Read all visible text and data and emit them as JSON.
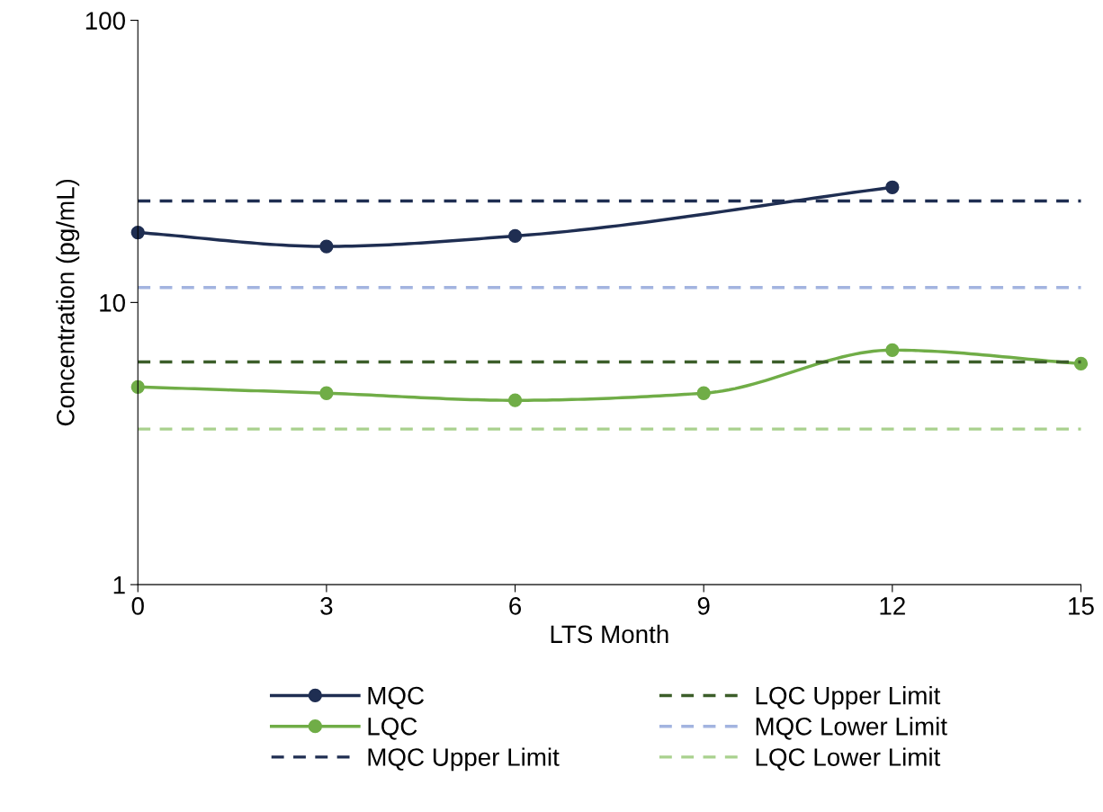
{
  "chart_data": {
    "type": "line",
    "xlabel": "LTS Month",
    "ylabel": "Concentration (pg/mL)",
    "x": [
      0,
      3,
      6,
      9,
      12,
      15
    ],
    "xlim": [
      0,
      15
    ],
    "xticks": [
      0,
      3,
      6,
      9,
      12,
      15
    ],
    "ylim": [
      1,
      100
    ],
    "yticks": [
      1,
      10,
      100
    ],
    "log": "y",
    "grid": false,
    "legend": "bottom",
    "series": [
      {
        "name": "MQC",
        "color": "#1f2e52",
        "marker": "circle",
        "line_style": "solid",
        "x": [
          0,
          3,
          6,
          12
        ],
        "values": [
          17.7,
          15.8,
          17.2,
          25.6
        ]
      },
      {
        "name": "LQC",
        "color": "#70ad47",
        "marker": "circle",
        "line_style": "solid",
        "values": [
          5.02,
          4.77,
          4.5,
          4.77,
          6.78,
          6.07
        ]
      },
      {
        "name": "MQC Upper Limit",
        "color": "#1f2e52",
        "marker": "none",
        "line_style": "dashed",
        "x": [
          0,
          15
        ],
        "values": [
          22.9,
          22.9
        ]
      },
      {
        "name": "LQC Upper Limit",
        "color": "#3c5e2a",
        "marker": "none",
        "line_style": "dashed",
        "x": [
          0,
          15
        ],
        "values": [
          6.16,
          6.16
        ]
      },
      {
        "name": "MQC Lower Limit",
        "color": "#a3b4e0",
        "marker": "none",
        "line_style": "dashed",
        "x": [
          0,
          15
        ],
        "values": [
          11.3,
          11.3
        ]
      },
      {
        "name": "LQC Lower Limit",
        "color": "#a9d18e",
        "marker": "none",
        "line_style": "dashed",
        "x": [
          0,
          15
        ],
        "values": [
          3.56,
          3.56
        ]
      }
    ]
  }
}
